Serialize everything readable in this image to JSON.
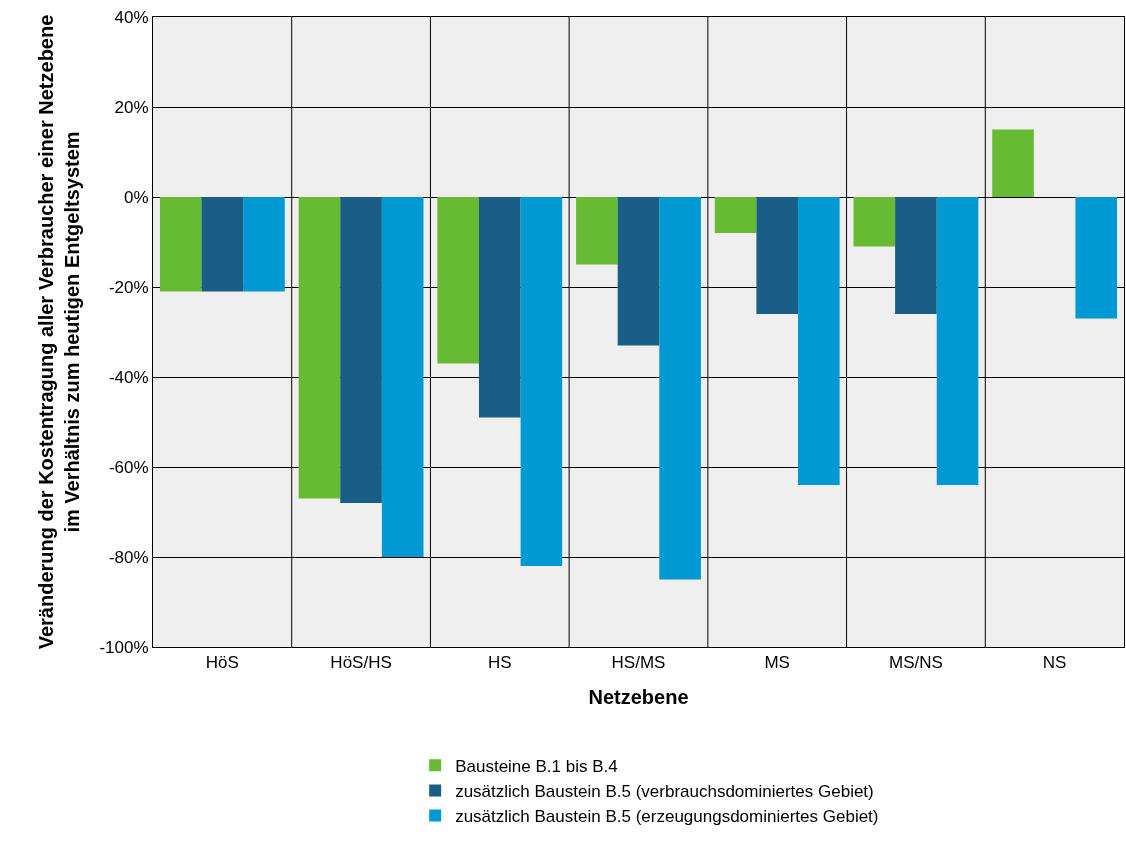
{
  "chart_data": {
    "type": "bar",
    "categories": [
      "HöS",
      "HöS/HS",
      "HS",
      "HS/MS",
      "MS",
      "MS/NS",
      "NS"
    ],
    "xlabel": "Netzebene",
    "ylabel": "Veränderung der Kostentragung aller Verbraucher einer Netzebene\nim Verhältnis zum heutigen Entgeltsystem",
    "series": [
      {
        "name": "Bausteine B.1 bis B.4",
        "color": "#66bb33",
        "values": [
          -21,
          -67,
          -37,
          -15,
          -8,
          -11,
          15
        ]
      },
      {
        "name": "zusätzlich Baustein B.5 (verbrauchsdominiertes Gebiet)",
        "color": "#1a5e85",
        "values": [
          -21,
          -68,
          -49,
          -33,
          -26,
          -26,
          null
        ]
      },
      {
        "name": "zusätzlich Baustein B.5 (erzeugungsdominiertes Gebiet)",
        "color": "#0099d4",
        "values": [
          -21,
          -80,
          -82,
          -85,
          -64,
          -64,
          -27
        ]
      }
    ],
    "ylim": [
      -100,
      40
    ],
    "yticks": [
      {
        "value": -100,
        "label": "-100%"
      },
      {
        "value": -80,
        "label": "-80%"
      },
      {
        "value": -60,
        "label": "-60%"
      },
      {
        "value": -40,
        "label": "-40%"
      },
      {
        "value": -20,
        "label": "-20%"
      },
      {
        "value": 0,
        "label": "0%"
      },
      {
        "value": 20,
        "label": "20%"
      },
      {
        "value": 40,
        "label": "40%"
      }
    ],
    "grid": true,
    "legend": "bottom"
  }
}
